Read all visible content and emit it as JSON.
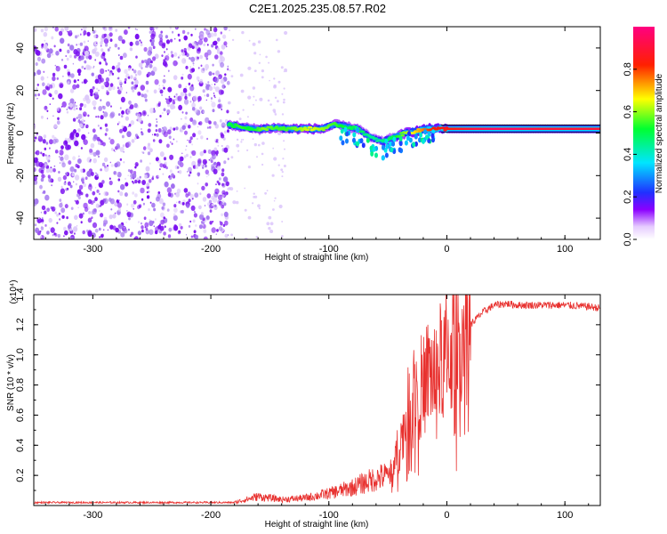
{
  "title": "C2E1.2025.235.08.57.R02",
  "colors": {
    "snr_line": "#e8312f",
    "frame": "#000000"
  },
  "chart_data": [
    {
      "type": "heatmap",
      "xlabel": "Height of straight line (km)",
      "ylabel": "Frequency (Hz)",
      "xlim": [
        -350,
        130
      ],
      "ylim": [
        -50,
        50
      ],
      "xticks": [
        -300,
        -200,
        -100,
        0,
        100
      ],
      "yticks": [
        -40,
        -20,
        0,
        20,
        40
      ],
      "colorbar": {
        "label": "Normalized spectral amplitude",
        "range": [
          0,
          1
        ],
        "ticks": [
          "0.0",
          "0.2",
          "0.4",
          "0.6",
          "0.8"
        ],
        "tick_values": [
          0.0,
          0.2,
          0.4,
          0.6,
          0.8
        ],
        "colormap": "rainbow (white-violet-blue-cyan-green-yellow-red-magenta)"
      },
      "signal_trace": {
        "x": [
          -185,
          -175,
          -165,
          -155,
          -145,
          -135,
          -125,
          -115,
          -105,
          -95,
          -85,
          -75,
          -65,
          -55,
          -45,
          -35,
          -25,
          -15,
          -5,
          5,
          20,
          40,
          60,
          80,
          100,
          120,
          130
        ],
        "y": [
          4,
          3,
          2,
          2,
          2.5,
          2,
          2,
          2,
          2,
          4,
          3,
          2,
          -2,
          -4,
          -2,
          0,
          1,
          2,
          2,
          2,
          2,
          2,
          2,
          2,
          2,
          2,
          2
        ],
        "amplitude": [
          0.5,
          0.55,
          0.5,
          0.6,
          0.55,
          0.55,
          0.6,
          0.65,
          0.6,
          0.55,
          0.5,
          0.5,
          0.45,
          0.45,
          0.5,
          0.6,
          0.7,
          0.8,
          0.85,
          0.85,
          0.9,
          0.95,
          0.95,
          0.9,
          0.9,
          0.9,
          0.9
        ]
      },
      "noise_region_x": [
        -350,
        -185
      ]
    },
    {
      "type": "line",
      "xlabel": "Height of straight line (km)",
      "ylabel": "SNR (10 * v/v)",
      "y_multiplier": "(x10⁴)",
      "xlim": [
        -350,
        130
      ],
      "ylim": [
        0,
        1.4
      ],
      "xticks": [
        -300,
        -200,
        -100,
        0,
        100
      ],
      "yticks": [
        "0.2",
        "0.4",
        "0.6",
        "0.8",
        "1.0",
        "1.2",
        "1.4"
      ],
      "ytick_values": [
        0.2,
        0.4,
        0.6,
        0.8,
        1.0,
        1.2,
        1.4
      ],
      "series": [
        {
          "x": [
            -350,
            -300,
            -250,
            -200,
            -180,
            -170,
            -160,
            -150,
            -140,
            -120,
            -100,
            -90,
            -80,
            -70,
            -60,
            -50,
            -45,
            -40,
            -35,
            -30,
            -25,
            -20,
            -15,
            -10,
            -5,
            0,
            5,
            10,
            15,
            20,
            30,
            40,
            50,
            60,
            80,
            100,
            120,
            130
          ],
          "y": [
            0.02,
            0.02,
            0.02,
            0.02,
            0.02,
            0.04,
            0.06,
            0.05,
            0.04,
            0.05,
            0.08,
            0.1,
            0.12,
            0.15,
            0.18,
            0.2,
            0.28,
            0.4,
            0.55,
            0.75,
            0.8,
            0.78,
            0.9,
            0.85,
            0.95,
            1.0,
            1.05,
            1.1,
            1.18,
            1.2,
            1.28,
            1.33,
            1.34,
            1.33,
            1.33,
            1.33,
            1.32,
            1.31
          ]
        }
      ]
    }
  ]
}
